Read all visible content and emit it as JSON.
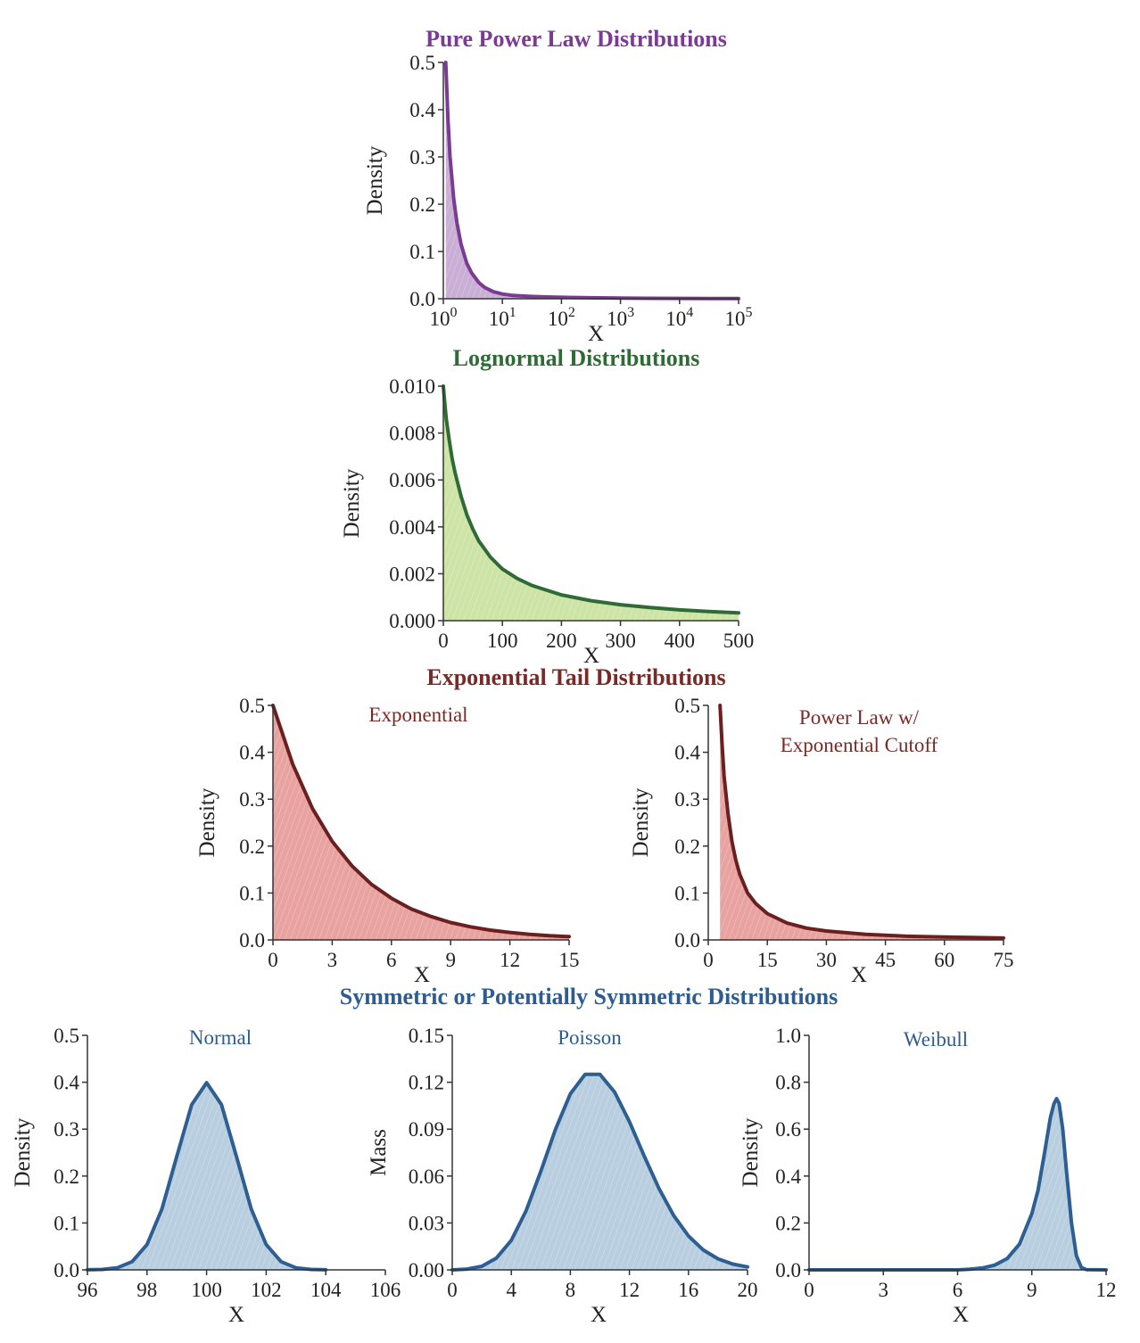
{
  "colors": {
    "powerlaw": {
      "line": "#7b3b93",
      "fill": "#c9aed6",
      "title": "#7b3b93"
    },
    "lognormal": {
      "line": "#2f6b35",
      "fill": "#cde4a6",
      "title": "#2f6b35"
    },
    "exptail": {
      "line": "#6b1f1f",
      "fill": "#e8a3a0",
      "title": "#7a2a26"
    },
    "symmetric": {
      "line": "#2d5f93",
      "fill": "#b9cfe0",
      "title": "#2d5c8f"
    }
  },
  "sections": {
    "powerlaw_title": "Pure Power Law Distributions",
    "lognormal_title": "Lognormal Distributions",
    "exptail_title": "Exponential Tail Distributions",
    "symmetric_title": "Symmetric or Potentially Symmetric Distributions"
  },
  "chart_data": [
    {
      "id": "powerlaw",
      "type": "area",
      "title": "",
      "xlabel": "X",
      "ylabel": "Density",
      "xscale": "log",
      "xlim": [
        1,
        100000
      ],
      "ylim": [
        0,
        0.5
      ],
      "xticks": [
        1,
        10,
        100,
        1000,
        10000,
        100000
      ],
      "xtick_labels": [
        {
          "base": "10",
          "exp": "0"
        },
        {
          "base": "10",
          "exp": "1"
        },
        {
          "base": "10",
          "exp": "2"
        },
        {
          "base": "10",
          "exp": "3"
        },
        {
          "base": "10",
          "exp": "4"
        },
        {
          "base": "10",
          "exp": "5"
        }
      ],
      "yticks": [
        0,
        0.1,
        0.2,
        0.3,
        0.4,
        0.5
      ],
      "ytick_labels": [
        "0.0",
        "0.1",
        "0.2",
        "0.3",
        "0.4",
        "0.5"
      ],
      "x": [
        1.1,
        1.2,
        1.3,
        1.5,
        1.7,
        2,
        2.5,
        3,
        4,
        5,
        7,
        10,
        15,
        20,
        30,
        50,
        100,
        300,
        1000,
        3000,
        10000,
        30000,
        100000
      ],
      "y": [
        0.5,
        0.38,
        0.3,
        0.21,
        0.16,
        0.115,
        0.075,
        0.055,
        0.034,
        0.024,
        0.015,
        0.01,
        0.007,
        0.006,
        0.005,
        0.004,
        0.003,
        0.002,
        0.0015,
        0.001,
        0.0008,
        0.0005,
        0.0003
      ]
    },
    {
      "id": "lognormal",
      "type": "area",
      "title": "",
      "xlabel": "X",
      "ylabel": "Density",
      "xlim": [
        0,
        500
      ],
      "ylim": [
        0,
        0.01
      ],
      "xticks": [
        0,
        100,
        200,
        300,
        400,
        500
      ],
      "xtick_labels": [
        "0",
        "100",
        "200",
        "300",
        "400",
        "500"
      ],
      "yticks": [
        0,
        0.002,
        0.004,
        0.006,
        0.008,
        0.01
      ],
      "ytick_labels": [
        "0.000",
        "0.002",
        "0.004",
        "0.006",
        "0.008",
        "0.010"
      ],
      "x": [
        0,
        2,
        5,
        10,
        15,
        20,
        30,
        40,
        50,
        60,
        80,
        100,
        125,
        150,
        200,
        250,
        300,
        350,
        400,
        450,
        500
      ],
      "y": [
        0.01,
        0.0094,
        0.0086,
        0.0077,
        0.0069,
        0.0063,
        0.0053,
        0.0045,
        0.0039,
        0.0034,
        0.0027,
        0.0022,
        0.0018,
        0.0015,
        0.0011,
        0.00085,
        0.00068,
        0.00056,
        0.00046,
        0.00039,
        0.00033
      ]
    },
    {
      "id": "exponential",
      "type": "area",
      "title": "Exponential",
      "xlabel": "X",
      "ylabel": "Density",
      "xlim": [
        0,
        15
      ],
      "ylim": [
        0,
        0.5
      ],
      "xticks": [
        0,
        3,
        6,
        9,
        12,
        15
      ],
      "xtick_labels": [
        "0",
        "3",
        "6",
        "9",
        "12",
        "15"
      ],
      "yticks": [
        0,
        0.1,
        0.2,
        0.3,
        0.4,
        0.5
      ],
      "ytick_labels": [
        "0.0",
        "0.1",
        "0.2",
        "0.3",
        "0.4",
        "0.5"
      ],
      "x": [
        0,
        1,
        2,
        3,
        4,
        5,
        6,
        7,
        8,
        9,
        10,
        11,
        12,
        13,
        14,
        15
      ],
      "y": [
        0.5,
        0.375,
        0.28,
        0.21,
        0.158,
        0.118,
        0.089,
        0.066,
        0.05,
        0.037,
        0.028,
        0.021,
        0.016,
        0.012,
        0.009,
        0.007
      ]
    },
    {
      "id": "plcutoff",
      "type": "area",
      "title": "Power Law w/\nExponential Cutoff",
      "xlabel": "X",
      "ylabel": "Density",
      "xlim": [
        0,
        75
      ],
      "ylim": [
        0,
        0.5
      ],
      "xticks": [
        0,
        15,
        30,
        45,
        60,
        75
      ],
      "xtick_labels": [
        "0",
        "15",
        "30",
        "45",
        "60",
        "75"
      ],
      "yticks": [
        0,
        0.1,
        0.2,
        0.3,
        0.4,
        0.5
      ],
      "ytick_labels": [
        "0.0",
        "0.1",
        "0.2",
        "0.3",
        "0.4",
        "0.5"
      ],
      "x": [
        3,
        3.5,
        4,
        5,
        6,
        7,
        8,
        10,
        12,
        15,
        20,
        25,
        30,
        40,
        50,
        60,
        75
      ],
      "y": [
        0.5,
        0.42,
        0.35,
        0.27,
        0.21,
        0.17,
        0.14,
        0.1,
        0.078,
        0.056,
        0.036,
        0.025,
        0.019,
        0.012,
        0.008,
        0.006,
        0.004
      ]
    },
    {
      "id": "normal",
      "type": "area",
      "title": "Normal",
      "xlabel": "X",
      "ylabel": "Density",
      "xlim": [
        96,
        106
      ],
      "ylim": [
        0,
        0.5
      ],
      "xticks": [
        96,
        98,
        100,
        102,
        104,
        106
      ],
      "xtick_labels": [
        "96",
        "98",
        "100",
        "102",
        "104",
        "106"
      ],
      "yticks": [
        0,
        0.1,
        0.2,
        0.3,
        0.4,
        0.5
      ],
      "ytick_labels": [
        "0.0",
        "0.1",
        "0.2",
        "0.3",
        "0.4",
        "0.5"
      ],
      "x": [
        96,
        96.5,
        97,
        97.5,
        98,
        98.5,
        99,
        99.5,
        100,
        100.5,
        101,
        101.5,
        102,
        102.5,
        103,
        103.5,
        104
      ],
      "y": [
        0.0001,
        0.0009,
        0.0044,
        0.0175,
        0.054,
        0.1295,
        0.242,
        0.352,
        0.399,
        0.352,
        0.242,
        0.1295,
        0.054,
        0.0175,
        0.0044,
        0.0009,
        0.0001
      ]
    },
    {
      "id": "poisson",
      "type": "area",
      "title": "Poisson",
      "xlabel": "X",
      "ylabel": "Mass",
      "xlim": [
        0,
        20
      ],
      "ylim": [
        0,
        0.15
      ],
      "xticks": [
        0,
        4,
        8,
        12,
        16,
        20
      ],
      "xtick_labels": [
        "0",
        "4",
        "8",
        "12",
        "16",
        "20"
      ],
      "yticks": [
        0,
        0.03,
        0.06,
        0.09,
        0.12,
        0.15
      ],
      "ytick_labels": [
        "0.00",
        "0.03",
        "0.06",
        "0.09",
        "0.12",
        "0.15"
      ],
      "x": [
        0,
        1,
        2,
        3,
        4,
        5,
        6,
        7,
        8,
        9,
        10,
        11,
        12,
        13,
        14,
        15,
        16,
        17,
        18,
        19,
        20
      ],
      "y": [
        0.0,
        0.0005,
        0.0023,
        0.0076,
        0.0189,
        0.0378,
        0.0631,
        0.0901,
        0.1126,
        0.1251,
        0.1251,
        0.1137,
        0.0948,
        0.0729,
        0.0521,
        0.0347,
        0.0217,
        0.0128,
        0.0071,
        0.0037,
        0.0019
      ]
    },
    {
      "id": "weibull",
      "type": "area",
      "title": "Weibull",
      "xlabel": "X",
      "ylabel": "Density",
      "xlim": [
        0,
        12
      ],
      "ylim": [
        0,
        1.0
      ],
      "xticks": [
        0,
        3,
        6,
        9,
        12
      ],
      "xtick_labels": [
        "0",
        "3",
        "6",
        "9",
        "12"
      ],
      "yticks": [
        0,
        0.2,
        0.4,
        0.6,
        0.8,
        1.0
      ],
      "ytick_labels": [
        "0.0",
        "0.2",
        "0.4",
        "0.6",
        "0.8",
        "1.0"
      ],
      "x": [
        0,
        6,
        6.5,
        7,
        7.5,
        8,
        8.5,
        9,
        9.25,
        9.5,
        9.75,
        9.9,
        10,
        10.1,
        10.25,
        10.4,
        10.6,
        10.8,
        11,
        11.2,
        12
      ],
      "y": [
        0,
        0,
        0.003,
        0.008,
        0.02,
        0.048,
        0.11,
        0.24,
        0.34,
        0.49,
        0.65,
        0.71,
        0.73,
        0.71,
        0.6,
        0.42,
        0.2,
        0.06,
        0.01,
        0.001,
        0
      ]
    }
  ]
}
